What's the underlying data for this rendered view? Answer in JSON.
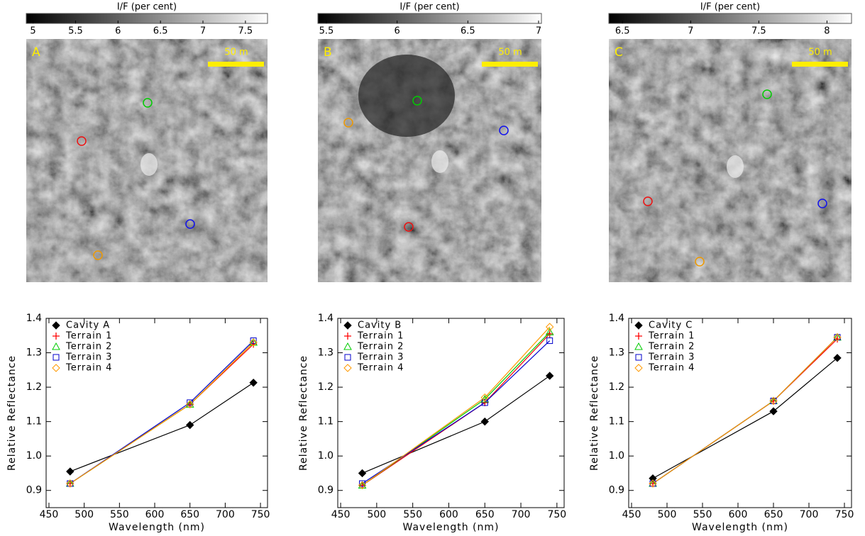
{
  "images": [
    {
      "colorbar_label": "I/F (per cent)",
      "colorbar_range": [
        4.92,
        7.76
      ],
      "colorbar_ticks": [
        5,
        5.5,
        6,
        6.5,
        7,
        7.5
      ],
      "letter": "A",
      "scale_label": "50 m"
    },
    {
      "colorbar_label": "I/F (per cent)",
      "colorbar_range": [
        5.44,
        7.02
      ],
      "colorbar_ticks": [
        5.5,
        6,
        6.5,
        7
      ],
      "letter": "B",
      "scale_label": "50 m"
    },
    {
      "colorbar_label": "I/F (per cent)",
      "colorbar_range": [
        6.4,
        8.18
      ],
      "colorbar_ticks": [
        6.5,
        7,
        7.5,
        8
      ],
      "letter": "C",
      "scale_label": "50 m"
    }
  ],
  "chart_data": [
    {
      "type": "line",
      "xlabel": "Wavelength (nm)",
      "ylabel": "Relative Reflectance",
      "x": [
        480,
        650,
        740
      ],
      "xlim": [
        446,
        760
      ],
      "xticks": [
        450,
        500,
        550,
        600,
        650,
        700,
        750
      ],
      "ylim": [
        0.85,
        1.4
      ],
      "yticks": [
        0.9,
        {
          "value": 1,
          "label": "1.0"
        },
        1.1,
        1.2,
        1.3,
        1.4
      ],
      "legend": "upper left",
      "series": [
        {
          "name": "Cavity A",
          "color": "#000000",
          "marker": "diamond",
          "values": [
            0.955,
            1.09,
            1.213
          ]
        },
        {
          "name": "Terrain 1",
          "color": "#ff0000",
          "marker": "plus",
          "values": [
            0.92,
            1.15,
            1.325
          ]
        },
        {
          "name": "Terrain 2",
          "color": "#00cc00",
          "marker": "triangle",
          "values": [
            0.92,
            1.15,
            1.33
          ]
        },
        {
          "name": "Terrain 3",
          "color": "#0000cc",
          "marker": "square",
          "values": [
            0.92,
            1.155,
            1.335
          ]
        },
        {
          "name": "Terrain 4",
          "color": "#ff9900",
          "marker": "diamond-open",
          "values": [
            0.92,
            1.15,
            1.33
          ]
        }
      ]
    },
    {
      "type": "line",
      "xlabel": "Wavelength (nm)",
      "ylabel": "Relative Reflectance",
      "x": [
        480,
        650,
        740
      ],
      "xlim": [
        446,
        760
      ],
      "xticks": [
        450,
        500,
        550,
        600,
        650,
        700,
        750
      ],
      "ylim": [
        0.85,
        1.4
      ],
      "yticks": [
        0.9,
        {
          "value": 1,
          "label": "1.0"
        },
        1.1,
        1.2,
        1.3,
        1.4
      ],
      "legend": "upper left",
      "series": [
        {
          "name": "Cavity B",
          "color": "#000000",
          "marker": "diamond",
          "values": [
            0.95,
            1.1,
            1.233
          ]
        },
        {
          "name": "Terrain 1",
          "color": "#ff0000",
          "marker": "plus",
          "values": [
            0.915,
            1.155,
            1.355
          ]
        },
        {
          "name": "Terrain 2",
          "color": "#00cc00",
          "marker": "triangle",
          "values": [
            0.915,
            1.165,
            1.36
          ]
        },
        {
          "name": "Terrain 3",
          "color": "#0000cc",
          "marker": "square",
          "values": [
            0.92,
            1.155,
            1.335
          ]
        },
        {
          "name": "Terrain 4",
          "color": "#ff9900",
          "marker": "diamond-open",
          "values": [
            0.915,
            1.17,
            1.375
          ]
        }
      ]
    },
    {
      "type": "line",
      "xlabel": "Wavelength (nm)",
      "ylabel": "Relative Reflectance",
      "x": [
        480,
        650,
        740
      ],
      "xlim": [
        446,
        760
      ],
      "xticks": [
        450,
        500,
        550,
        600,
        650,
        700,
        750
      ],
      "ylim": [
        0.85,
        1.4
      ],
      "yticks": [
        0.9,
        {
          "value": 1,
          "label": "1.0"
        },
        1.1,
        1.2,
        1.3,
        1.4
      ],
      "legend": "upper left",
      "series": [
        {
          "name": "Cavity C",
          "color": "#000000",
          "marker": "diamond",
          "values": [
            0.935,
            1.13,
            1.285
          ]
        },
        {
          "name": "Terrain 1",
          "color": "#ff0000",
          "marker": "plus",
          "values": [
            0.92,
            1.16,
            1.34
          ]
        },
        {
          "name": "Terrain 2",
          "color": "#00cc00",
          "marker": "triangle",
          "values": [
            0.92,
            1.16,
            1.345
          ]
        },
        {
          "name": "Terrain 3",
          "color": "#0000cc",
          "marker": "square",
          "values": [
            0.92,
            1.16,
            1.345
          ]
        },
        {
          "name": "Terrain 4",
          "color": "#ff9900",
          "marker": "diamond-open",
          "values": [
            0.92,
            1.16,
            1.345
          ]
        }
      ]
    }
  ]
}
